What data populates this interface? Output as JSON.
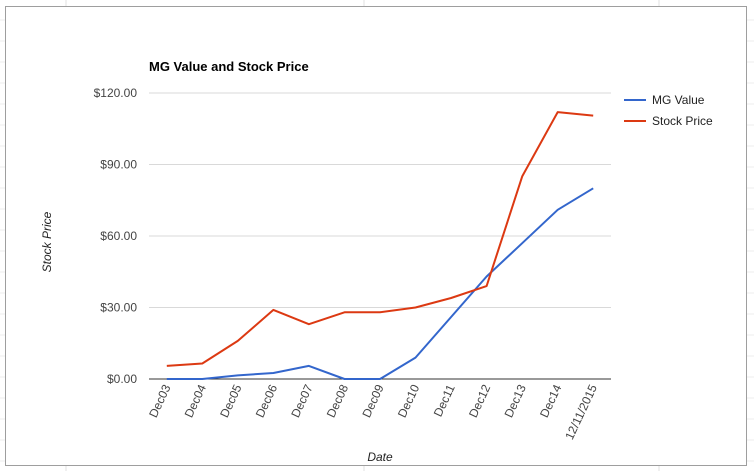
{
  "chart_data": {
    "type": "line",
    "title": "MG Value and Stock Price",
    "xlabel": "Date",
    "ylabel": "Stock Price",
    "categories": [
      "Dec03",
      "Dec04",
      "Dec05",
      "Dec06",
      "Dec07",
      "Dec08",
      "Dec09",
      "Dec10",
      "Dec11",
      "Dec12",
      "Dec13",
      "Dec14",
      "12/11/2015"
    ],
    "yticks": [
      "$0.00",
      "$30.00",
      "$60.00",
      "$90.00",
      "$120.00"
    ],
    "ylim": [
      0,
      120
    ],
    "grid": true,
    "legend_position": "right",
    "series": [
      {
        "name": "MG Value",
        "color": "#3366cc",
        "values": [
          0,
          0,
          1.5,
          2.5,
          5.5,
          0,
          0,
          9,
          26,
          43,
          57,
          71,
          80
        ]
      },
      {
        "name": "Stock Price",
        "color": "#dc3912",
        "values": [
          5.5,
          6.5,
          16,
          29,
          23,
          28,
          28,
          30,
          34,
          39,
          85,
          112,
          110.5
        ]
      }
    ]
  }
}
